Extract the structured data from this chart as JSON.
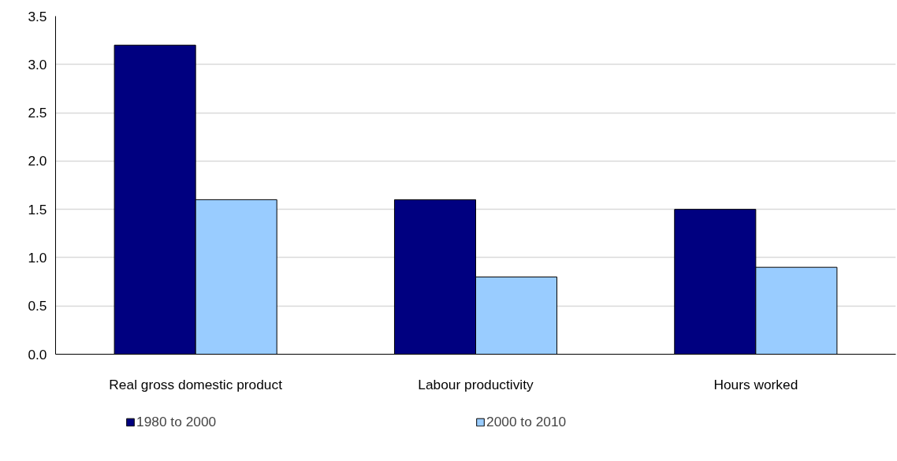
{
  "chart_data": {
    "type": "bar",
    "categories": [
      "Real gross domestic product",
      "Labour productivity",
      "Hours worked"
    ],
    "series": [
      {
        "name": "1980 to 2000",
        "color": "#000080",
        "values": [
          3.2,
          1.6,
          1.5
        ]
      },
      {
        "name": "2000 to 2010",
        "color": "#99ccff",
        "values": [
          1.6,
          0.8,
          0.9
        ]
      }
    ],
    "ylim": [
      0,
      3.5
    ],
    "yticks": [
      {
        "value": 0,
        "label": "0.0"
      },
      {
        "value": 0.5,
        "label": "0.5"
      },
      {
        "value": 1,
        "label": "1.0"
      },
      {
        "value": 1.5,
        "label": "1.5"
      },
      {
        "value": 2,
        "label": "2.0"
      },
      {
        "value": 2.5,
        "label": "2.5"
      },
      {
        "value": 3,
        "label": "3.0"
      },
      {
        "value": 3.5,
        "label": "3.5"
      }
    ],
    "grid": "y",
    "legend": "bottom"
  }
}
